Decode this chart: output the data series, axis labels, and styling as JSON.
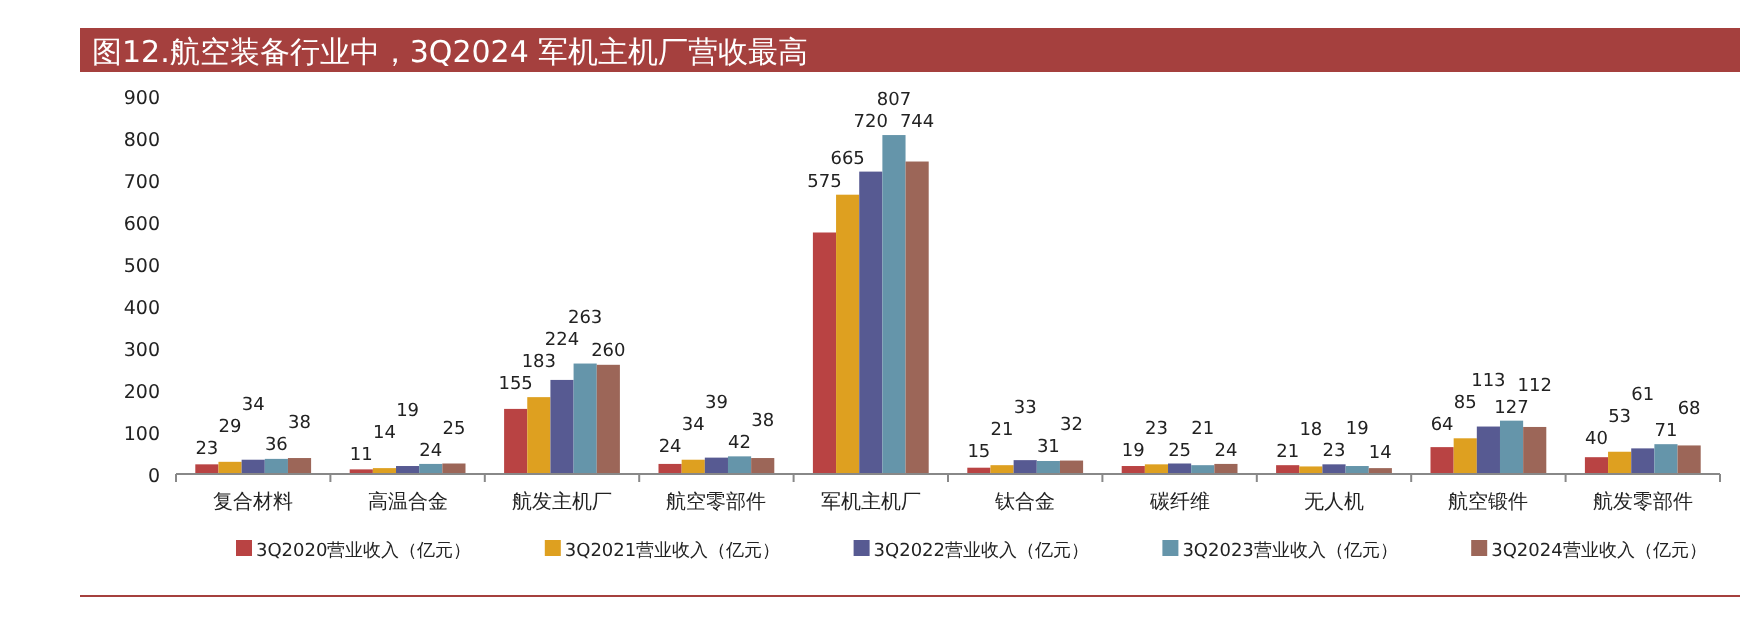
{
  "chart_data": {
    "type": "bar",
    "title": "图12.航空装备行业中，3Q2024 军机主机厂营收最高",
    "categories": [
      "复合材料",
      "高温合金",
      "航发主机厂",
      "航空零部件",
      "军机主机厂",
      "钛合金",
      "碳纤维",
      "无人机",
      "航空锻件",
      "航发零部件"
    ],
    "series": [
      {
        "name": "3Q2020营业收入（亿元）",
        "color": "#b94343",
        "values": [
          23,
          11,
          155,
          24,
          575,
          15,
          19,
          21,
          64,
          40
        ]
      },
      {
        "name": "3Q2021营业收入（亿元）",
        "color": "#dea020",
        "values": [
          29,
          14,
          183,
          34,
          665,
          21,
          23,
          18,
          85,
          53
        ]
      },
      {
        "name": "3Q2022营业收入（亿元）",
        "color": "#575a92",
        "values": [
          34,
          19,
          224,
          39,
          720,
          33,
          25,
          23,
          113,
          61
        ]
      },
      {
        "name": "3Q2023营业收入（亿元）",
        "color": "#6595aa",
        "values": [
          36,
          24,
          263,
          42,
          807,
          31,
          21,
          19,
          127,
          71
        ]
      },
      {
        "name": "3Q2024营业收入（亿元）",
        "color": "#9c6658",
        "values": [
          38,
          25,
          260,
          38,
          744,
          32,
          24,
          14,
          112,
          68
        ]
      }
    ],
    "ylim": [
      0,
      900
    ],
    "yticks": [
      0,
      100,
      200,
      300,
      400,
      500,
      600,
      700,
      800,
      900
    ],
    "data_labels": true,
    "legend": "bottom"
  }
}
